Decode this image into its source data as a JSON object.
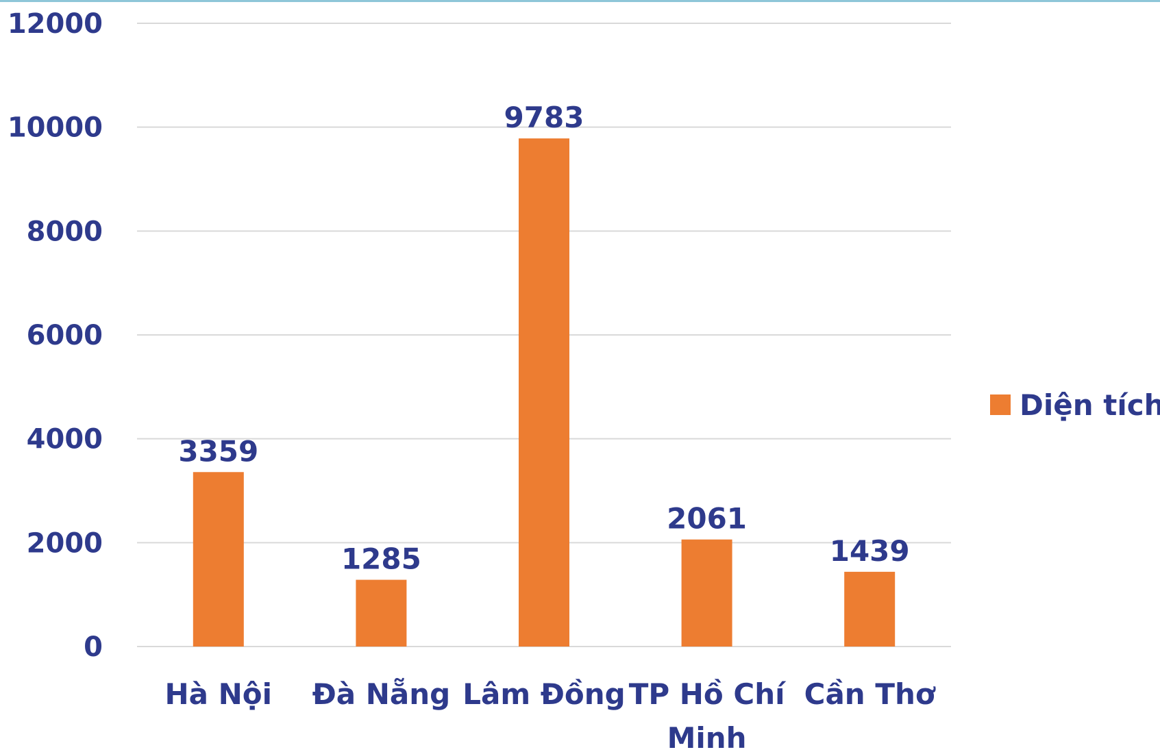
{
  "chart_data": {
    "type": "bar",
    "categories": [
      "Hà Nội",
      "Đà Nẵng",
      "Lâm Đồng",
      "TP Hồ Chí Minh",
      "Cần Thơ"
    ],
    "series": [
      {
        "name": "Diện tích",
        "values": [
          3359,
          1285,
          9783,
          2061,
          1439
        ],
        "color": "#ed7d31"
      }
    ],
    "ylim": [
      0,
      12000
    ],
    "yticks": [
      0,
      2000,
      4000,
      6000,
      8000,
      10000,
      12000
    ],
    "grid": true,
    "legend": "right",
    "data_labels": true,
    "text_color": "#2e3a8c"
  }
}
